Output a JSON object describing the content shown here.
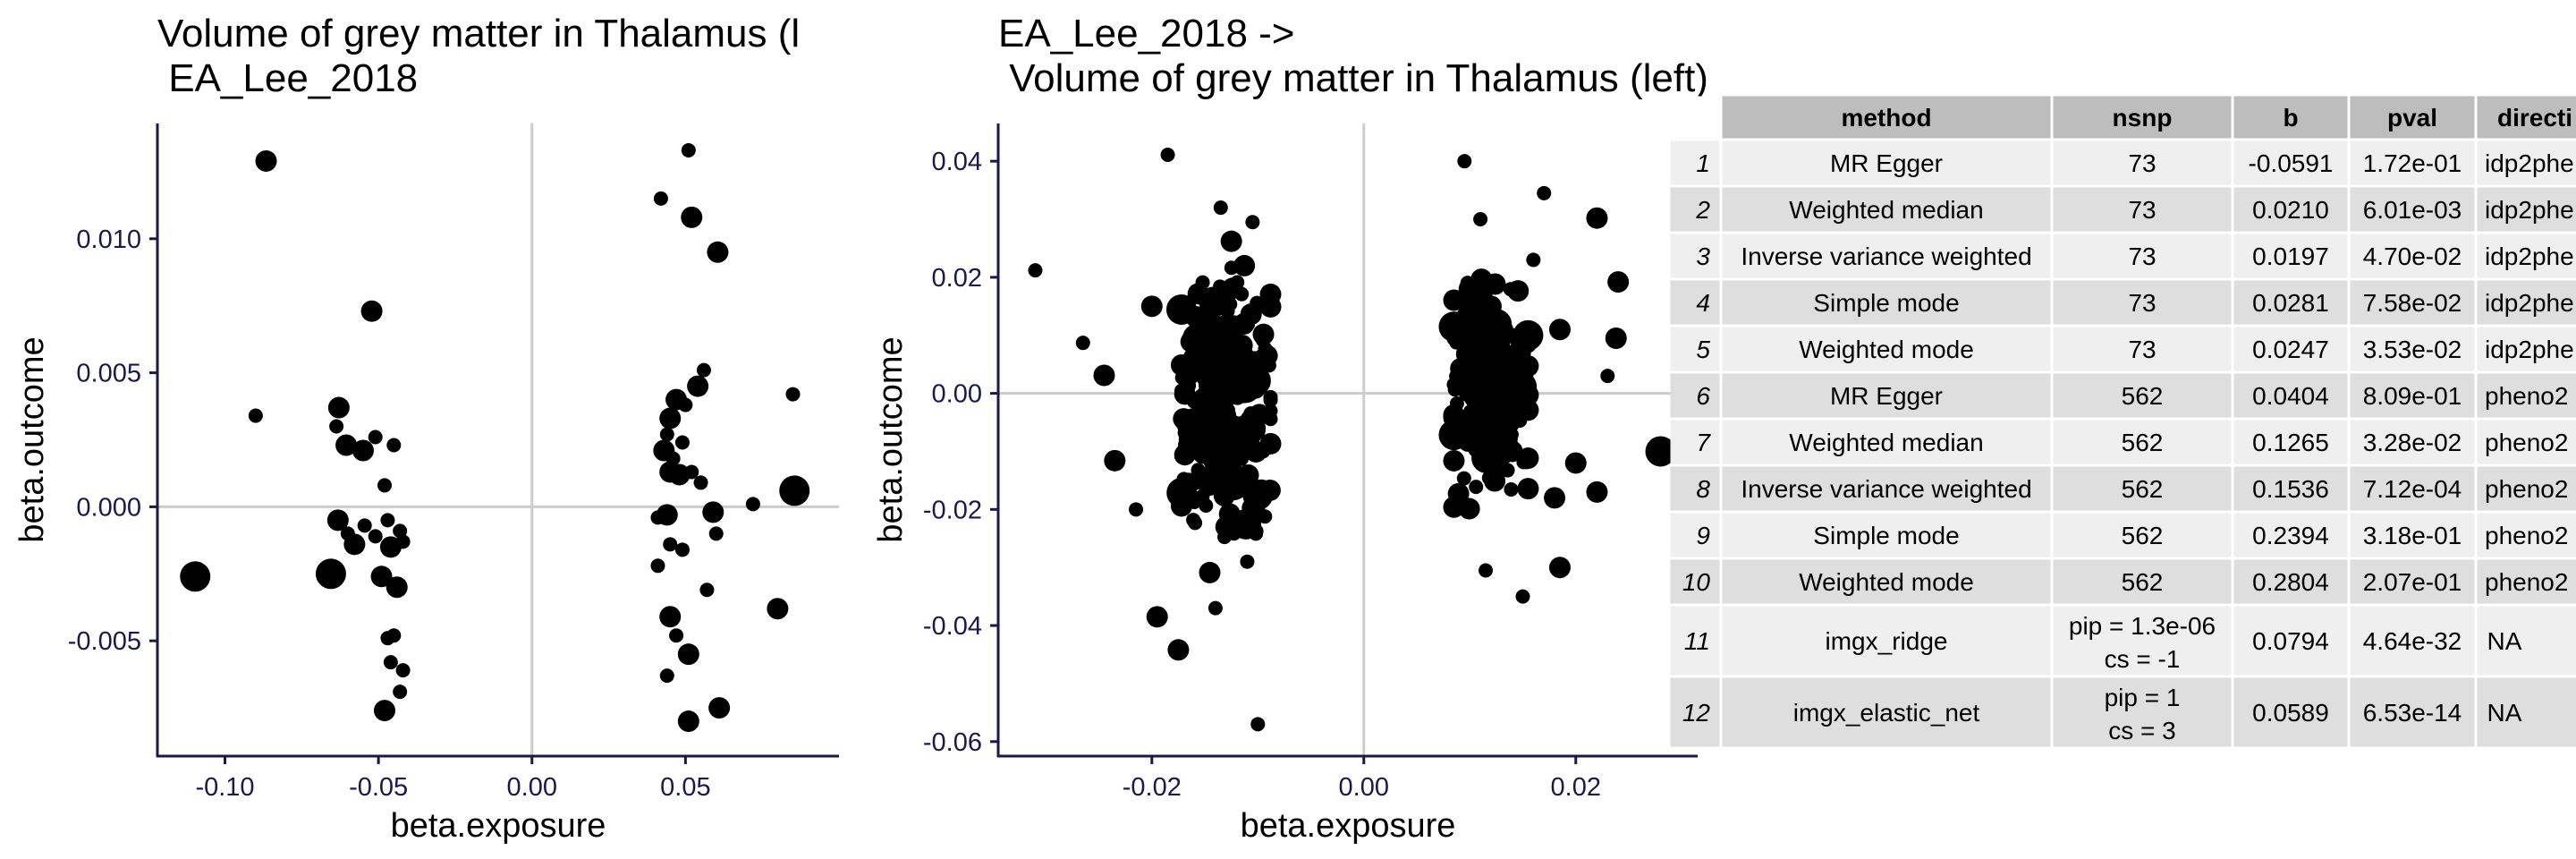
{
  "chart_data": [
    {
      "type": "scatter",
      "title_lines": [
        "Volume of grey matter in Thalamus (l",
        " EA_Lee_2018"
      ],
      "xlabel": "beta.exposure",
      "ylabel": "beta.outcome",
      "xlim": [
        -0.122,
        0.1
      ],
      "ylim": [
        -0.0093,
        0.0143
      ],
      "xticks": [
        -0.1,
        -0.05,
        0.0,
        0.05
      ],
      "xtick_labels": [
        "-0.10",
        "-0.05",
        "0.00",
        "0.05"
      ],
      "yticks": [
        -0.005,
        0.0,
        0.005,
        0.01
      ],
      "ytick_labels": [
        "-0.005",
        "0.000",
        "0.005",
        "0.010"
      ],
      "reference_lines": {
        "x": 0,
        "y": 0
      },
      "points": [
        {
          "x": -0.1097,
          "y": -0.0026,
          "size": 3
        },
        {
          "x": -0.0866,
          "y": 0.0129,
          "size": 2
        },
        {
          "x": -0.09,
          "y": 0.0034,
          "size": 1
        },
        {
          "x": -0.0655,
          "y": -0.0025,
          "size": 3
        },
        {
          "x": -0.0629,
          "y": 0.0037,
          "size": 2
        },
        {
          "x": -0.0605,
          "y": 0.0023,
          "size": 2
        },
        {
          "x": -0.0637,
          "y": 0.003,
          "size": 1
        },
        {
          "x": -0.0632,
          "y": -0.0005,
          "size": 2
        },
        {
          "x": -0.06,
          "y": -0.001,
          "size": 1
        },
        {
          "x": -0.0578,
          "y": -0.0014,
          "size": 2
        },
        {
          "x": -0.055,
          "y": 0.0021,
          "size": 2
        },
        {
          "x": -0.0522,
          "y": 0.0073,
          "size": 2
        },
        {
          "x": -0.051,
          "y": 0.0026,
          "size": 1
        },
        {
          "x": -0.0545,
          "y": -0.0007,
          "size": 1
        },
        {
          "x": -0.051,
          "y": -0.0011,
          "size": 1
        },
        {
          "x": -0.049,
          "y": -0.0026,
          "size": 2
        },
        {
          "x": -0.048,
          "y": 0.0008,
          "size": 1
        },
        {
          "x": -0.047,
          "y": -0.0005,
          "size": 1
        },
        {
          "x": -0.046,
          "y": -0.0015,
          "size": 2
        },
        {
          "x": -0.045,
          "y": 0.0023,
          "size": 1
        },
        {
          "x": -0.044,
          "y": -0.003,
          "size": 2
        },
        {
          "x": -0.043,
          "y": -0.0009,
          "size": 1
        },
        {
          "x": -0.042,
          "y": -0.0013,
          "size": 1
        },
        {
          "x": -0.047,
          "y": -0.0049,
          "size": 1
        },
        {
          "x": -0.045,
          "y": -0.0048,
          "size": 1
        },
        {
          "x": -0.046,
          "y": -0.0058,
          "size": 1
        },
        {
          "x": -0.042,
          "y": -0.0061,
          "size": 1
        },
        {
          "x": -0.043,
          "y": -0.0069,
          "size": 1
        },
        {
          "x": -0.048,
          "y": -0.0076,
          "size": 2
        },
        {
          "x": 0.042,
          "y": 0.0115,
          "size": 1
        },
        {
          "x": 0.051,
          "y": 0.0133,
          "size": 1
        },
        {
          "x": 0.052,
          "y": 0.0108,
          "size": 2
        },
        {
          "x": 0.0605,
          "y": 0.0095,
          "size": 2
        },
        {
          "x": 0.056,
          "y": 0.0051,
          "size": 1
        },
        {
          "x": 0.054,
          "y": 0.0045,
          "size": 2
        },
        {
          "x": 0.05,
          "y": 0.0038,
          "size": 1
        },
        {
          "x": 0.047,
          "y": 0.004,
          "size": 2
        },
        {
          "x": 0.045,
          "y": 0.0033,
          "size": 2
        },
        {
          "x": 0.044,
          "y": 0.0027,
          "size": 1
        },
        {
          "x": 0.043,
          "y": 0.0021,
          "size": 2
        },
        {
          "x": 0.046,
          "y": 0.0018,
          "size": 1
        },
        {
          "x": 0.049,
          "y": 0.0024,
          "size": 1
        },
        {
          "x": 0.045,
          "y": 0.0013,
          "size": 2
        },
        {
          "x": 0.048,
          "y": 0.0012,
          "size": 2
        },
        {
          "x": 0.052,
          "y": 0.0013,
          "size": 1
        },
        {
          "x": 0.055,
          "y": 0.0009,
          "size": 1
        },
        {
          "x": 0.041,
          "y": -0.0004,
          "size": 1
        },
        {
          "x": 0.044,
          "y": -0.0003,
          "size": 2
        },
        {
          "x": 0.059,
          "y": -0.0002,
          "size": 2
        },
        {
          "x": 0.06,
          "y": -0.001,
          "size": 1
        },
        {
          "x": 0.045,
          "y": -0.0014,
          "size": 1
        },
        {
          "x": 0.049,
          "y": -0.0016,
          "size": 1
        },
        {
          "x": 0.041,
          "y": -0.0022,
          "size": 1
        },
        {
          "x": 0.057,
          "y": -0.0031,
          "size": 1
        },
        {
          "x": 0.045,
          "y": -0.0041,
          "size": 2
        },
        {
          "x": 0.047,
          "y": -0.0048,
          "size": 1
        },
        {
          "x": 0.051,
          "y": -0.0055,
          "size": 2
        },
        {
          "x": 0.044,
          "y": -0.0063,
          "size": 1
        },
        {
          "x": 0.061,
          "y": -0.0075,
          "size": 2
        },
        {
          "x": 0.051,
          "y": -0.008,
          "size": 2
        },
        {
          "x": 0.072,
          "y": 0.0001,
          "size": 1
        },
        {
          "x": 0.08,
          "y": -0.0038,
          "size": 2
        },
        {
          "x": 0.085,
          "y": 0.0042,
          "size": 1
        },
        {
          "x": 0.0855,
          "y": 0.0006,
          "size": 3
        }
      ]
    },
    {
      "type": "scatter",
      "title_lines": [
        "EA_Lee_2018 ->",
        " Volume of grey matter in Thalamus (left)"
      ],
      "xlabel": "beta.exposure",
      "ylabel": "beta.outcome",
      "xlim": [
        -0.0345,
        0.0315
      ],
      "ylim": [
        -0.0625,
        0.0465
      ],
      "xticks": [
        -0.02,
        0.0,
        0.02
      ],
      "xtick_labels": [
        "-0.02",
        "0.00",
        "0.02"
      ],
      "yticks": [
        -0.06,
        -0.04,
        -0.02,
        0.0,
        0.02,
        0.04
      ],
      "ytick_labels": [
        "-0.06",
        "-0.04",
        "-0.02",
        "0.00",
        "0.02",
        "0.04"
      ],
      "reference_lines": {
        "x": 0,
        "y": 0
      },
      "points": [
        {
          "x": -0.031,
          "y": 0.0212,
          "size": 1
        },
        {
          "x": -0.0265,
          "y": 0.0087,
          "size": 1
        },
        {
          "x": -0.0245,
          "y": 0.0031,
          "size": 2
        },
        {
          "x": -0.0235,
          "y": -0.0116,
          "size": 2
        },
        {
          "x": -0.0215,
          "y": -0.02,
          "size": 1
        },
        {
          "x": -0.0185,
          "y": 0.0411,
          "size": 1
        },
        {
          "x": -0.0195,
          "y": -0.0385,
          "size": 2
        },
        {
          "x": -0.0175,
          "y": -0.0442,
          "size": 2
        },
        {
          "x": -0.01,
          "y": -0.057,
          "size": 1
        },
        {
          "x": -0.02,
          "y": 0.015,
          "size": 2
        },
        {
          "x": -0.0135,
          "y": 0.032,
          "size": 1
        },
        {
          "x": -0.0105,
          "y": 0.0295,
          "size": 1
        },
        {
          "x": -0.0125,
          "y": 0.0262,
          "size": 2
        },
        {
          "x": -0.014,
          "y": 0.0035,
          "size": 3
        },
        {
          "x": -0.0155,
          "y": -0.004,
          "size": 2
        },
        {
          "x": -0.012,
          "y": -0.009,
          "size": 2
        },
        {
          "x": -0.01,
          "y": -0.0175,
          "size": 3
        },
        {
          "x": -0.013,
          "y": -0.023,
          "size": 2
        },
        {
          "x": -0.011,
          "y": -0.029,
          "size": 1
        },
        {
          "x": -0.014,
          "y": -0.037,
          "size": 1
        },
        {
          "x": 0.0095,
          "y": 0.04,
          "size": 1
        },
        {
          "x": 0.011,
          "y": 0.03,
          "size": 1
        },
        {
          "x": 0.017,
          "y": 0.0345,
          "size": 1
        },
        {
          "x": 0.022,
          "y": 0.0302,
          "size": 2
        },
        {
          "x": 0.024,
          "y": 0.0192,
          "size": 2
        },
        {
          "x": 0.0238,
          "y": 0.0095,
          "size": 2
        },
        {
          "x": 0.023,
          "y": 0.003,
          "size": 1
        },
        {
          "x": 0.028,
          "y": -0.01,
          "size": 3
        },
        {
          "x": 0.022,
          "y": -0.017,
          "size": 2
        },
        {
          "x": 0.02,
          "y": -0.012,
          "size": 2
        },
        {
          "x": 0.0185,
          "y": 0.011,
          "size": 2
        },
        {
          "x": 0.018,
          "y": -0.018,
          "size": 2
        },
        {
          "x": 0.0185,
          "y": -0.03,
          "size": 2
        },
        {
          "x": 0.0115,
          "y": -0.0305,
          "size": 1
        },
        {
          "x": 0.015,
          "y": -0.035,
          "size": 1
        },
        {
          "x": 0.012,
          "y": 0.015,
          "size": 2
        },
        {
          "x": 0.015,
          "y": 0.002,
          "size": 2
        },
        {
          "x": 0.01,
          "y": -0.005,
          "size": 2
        },
        {
          "x": 0.014,
          "y": -0.01,
          "size": 2
        },
        {
          "x": 0.016,
          "y": 0.023,
          "size": 1
        }
      ],
      "cluster_regions": [
        {
          "x_center": -0.013,
          "x_spread": 0.0042,
          "y_center": -0.002,
          "y_spread": 0.016,
          "count": 290,
          "seed": 11
        },
        {
          "x_center": 0.012,
          "x_spread": 0.0035,
          "y_center": 0.0,
          "y_spread": 0.013,
          "count": 230,
          "seed": 23
        }
      ]
    }
  ],
  "table": {
    "columns": [
      "",
      "method",
      "nsnp",
      "b",
      "pval",
      "directi"
    ],
    "rows": [
      {
        "id": "1",
        "method": "MR Egger",
        "nsnp": [
          "73"
        ],
        "b": "-0.0591",
        "pval": "1.72e-01",
        "direction": "idp2phe"
      },
      {
        "id": "2",
        "method": "Weighted median",
        "nsnp": [
          "73"
        ],
        "b": "0.0210",
        "pval": "6.01e-03",
        "direction": "idp2phe"
      },
      {
        "id": "3",
        "method": "Inverse variance weighted",
        "nsnp": [
          "73"
        ],
        "b": "0.0197",
        "pval": "4.70e-02",
        "direction": "idp2phe"
      },
      {
        "id": "4",
        "method": "Simple mode",
        "nsnp": [
          "73"
        ],
        "b": "0.0281",
        "pval": "7.58e-02",
        "direction": "idp2phe"
      },
      {
        "id": "5",
        "method": "Weighted mode",
        "nsnp": [
          "73"
        ],
        "b": "0.0247",
        "pval": "3.53e-02",
        "direction": "idp2phe"
      },
      {
        "id": "6",
        "method": "MR Egger",
        "nsnp": [
          "562"
        ],
        "b": "0.0404",
        "pval": "8.09e-01",
        "direction": "pheno2"
      },
      {
        "id": "7",
        "method": "Weighted median",
        "nsnp": [
          "562"
        ],
        "b": "0.1265",
        "pval": "3.28e-02",
        "direction": "pheno2"
      },
      {
        "id": "8",
        "method": "Inverse variance weighted",
        "nsnp": [
          "562"
        ],
        "b": "0.1536",
        "pval": "7.12e-04",
        "direction": "pheno2"
      },
      {
        "id": "9",
        "method": "Simple mode",
        "nsnp": [
          "562"
        ],
        "b": "0.2394",
        "pval": "3.18e-01",
        "direction": "pheno2"
      },
      {
        "id": "10",
        "method": "Weighted mode",
        "nsnp": [
          "562"
        ],
        "b": "0.2804",
        "pval": "2.07e-01",
        "direction": "pheno2"
      },
      {
        "id": "11",
        "method": "imgx_ridge",
        "nsnp": [
          "pip = 1.3e-06",
          "cs = -1"
        ],
        "b": "0.0794",
        "pval": "4.64e-32",
        "direction": "NA"
      },
      {
        "id": "12",
        "method": "imgx_elastic_net",
        "nsnp": [
          "pip = 1",
          "cs = 3"
        ],
        "b": "0.0589",
        "pval": "6.53e-14",
        "direction": "NA"
      }
    ],
    "colors": {
      "header": "#bdbdbd",
      "row_light": "#efefef",
      "row_dark": "#dedede",
      "grid": "#ffffff"
    }
  },
  "colors": {
    "point": "#000000",
    "axis": "#1a1a4a",
    "refline": "#cccccc"
  }
}
